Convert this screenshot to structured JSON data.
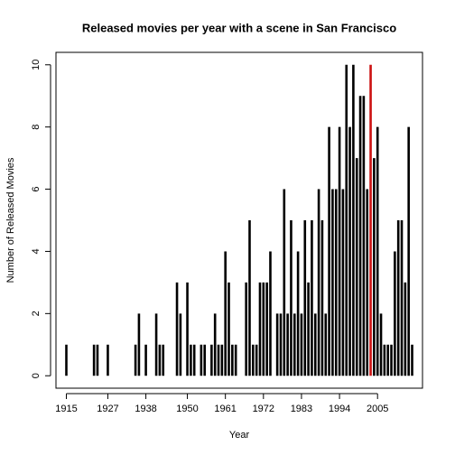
{
  "chart_data": {
    "type": "bar",
    "title": "Released movies per year with a scene in San Francisco",
    "x_label": "Year",
    "y_label": "Number of Released Movies",
    "x": [
      1915,
      1923,
      1924,
      1927,
      1935,
      1936,
      1938,
      1941,
      1942,
      1943,
      1947,
      1948,
      1950,
      1951,
      1952,
      1954,
      1955,
      1957,
      1958,
      1959,
      1960,
      1961,
      1962,
      1963,
      1964,
      1967,
      1968,
      1969,
      1970,
      1971,
      1972,
      1973,
      1974,
      1976,
      1977,
      1978,
      1979,
      1980,
      1981,
      1982,
      1983,
      1984,
      1985,
      1986,
      1987,
      1988,
      1989,
      1990,
      1991,
      1992,
      1993,
      1994,
      1995,
      1996,
      1997,
      1998,
      1999,
      2000,
      2001,
      2002,
      2003,
      2004,
      2005,
      2006,
      2007,
      2008,
      2009,
      2010,
      2011,
      2012,
      2013,
      2014,
      2015
    ],
    "values": [
      1,
      1,
      1,
      1,
      1,
      2,
      1,
      2,
      1,
      1,
      3,
      2,
      3,
      1,
      1,
      1,
      1,
      1,
      2,
      1,
      1,
      4,
      3,
      1,
      1,
      3,
      5,
      1,
      1,
      3,
      3,
      3,
      4,
      2,
      2,
      6,
      2,
      5,
      2,
      4,
      2,
      5,
      3,
      5,
      2,
      6,
      5,
      2,
      8,
      6,
      6,
      8,
      6,
      10,
      8,
      10,
      7,
      9,
      9,
      6,
      10,
      7,
      8,
      2,
      1,
      1,
      1,
      4,
      5,
      5,
      3,
      8,
      1
    ],
    "color": "#000000",
    "highlight": {
      "x": 2003,
      "color": "#cc1111"
    },
    "xlim": [
      1912,
      2018
    ],
    "xticks": [
      1915,
      1927,
      1938,
      1950,
      1961,
      1972,
      1983,
      1994,
      2005
    ],
    "ylim": [
      -0.4,
      10.4
    ],
    "yticks": [
      0,
      2,
      4,
      6,
      8,
      10
    ]
  }
}
